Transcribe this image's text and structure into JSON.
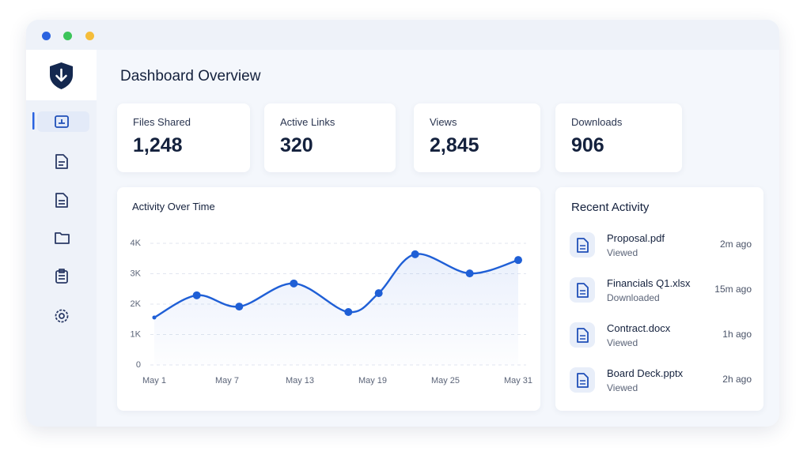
{
  "header": {
    "title": "Dashboard Overview"
  },
  "stats": [
    {
      "label": "Files Shared",
      "value": "1,248"
    },
    {
      "label": "Active Links",
      "value": "320"
    },
    {
      "label": "Views",
      "value": "2,845"
    },
    {
      "label": "Downloads",
      "value": "906"
    }
  ],
  "chart_data": {
    "type": "line",
    "title": "Activity Over Time",
    "x": [
      1,
      4.5,
      8,
      12.5,
      17,
      19.5,
      22.5,
      27,
      31
    ],
    "series": [
      {
        "name": "Activity",
        "color": "#1f5fd6",
        "values": [
          1560,
          2290,
          1920,
          2680,
          1740,
          2360,
          3640,
          3010,
          3450
        ]
      }
    ],
    "xlim": [
      1,
      31
    ],
    "xticks": [
      {
        "value": 1,
        "label": "May 1"
      },
      {
        "value": 7,
        "label": "May 7"
      },
      {
        "value": 13,
        "label": "May 13"
      },
      {
        "value": 19,
        "label": "May 19"
      },
      {
        "value": 25,
        "label": "May 25"
      },
      {
        "value": 31,
        "label": "May 31"
      }
    ],
    "ylim": [
      0,
      4000
    ],
    "yticks": [
      {
        "value": 0,
        "label": "0"
      },
      {
        "value": 1000,
        "label": "1K"
      },
      {
        "value": 2000,
        "label": "2K"
      },
      {
        "value": 3000,
        "label": "3K"
      },
      {
        "value": 4000,
        "label": "4K"
      }
    ],
    "grid": true
  },
  "recent": {
    "title": "Recent Activity",
    "items": [
      {
        "name": "Proposal.pdf",
        "action": "Viewed",
        "time": "2m ago"
      },
      {
        "name": "Financials Q1.xlsx",
        "action": "Downloaded",
        "time": "15m ago"
      },
      {
        "name": "Contract.docx",
        "action": "Viewed",
        "time": "1h ago"
      },
      {
        "name": "Board Deck.pptx",
        "action": "Viewed",
        "time": "2h ago"
      }
    ]
  }
}
